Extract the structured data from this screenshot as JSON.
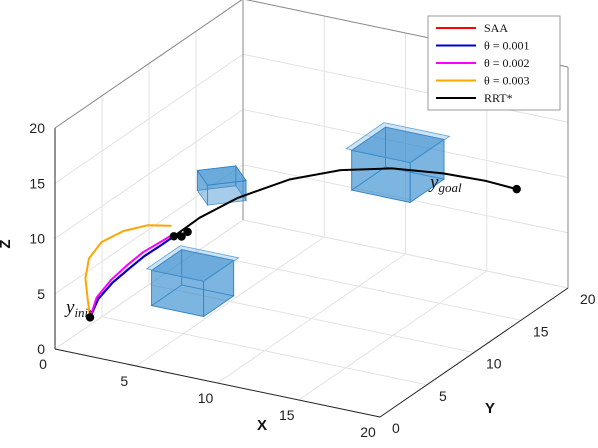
{
  "chart_data": {
    "type": "line",
    "xlabel": "X",
    "ylabel": "Y",
    "zlabel": "Z",
    "xlim": [
      0,
      20
    ],
    "ylim": [
      0,
      20
    ],
    "zlim": [
      0,
      20
    ],
    "xticks": [
      "0",
      "5",
      "10",
      "15",
      "20"
    ],
    "yticks": [
      "0",
      "5",
      "10",
      "15",
      "20"
    ],
    "zticks": [
      "0",
      "5",
      "10",
      "15",
      "20"
    ],
    "grid": true,
    "legend_position": "top-right",
    "series": [
      {
        "name": "SAA",
        "color": "#ff0000",
        "x": [
          1.0,
          1.4,
          2.1,
          2.9,
          3.6,
          4.4,
          5.0
        ],
        "y": [
          2.0,
          2.2,
          2.5,
          2.9,
          3.3,
          3.7,
          4.0
        ],
        "z": [
          2.0,
          3.7,
          5.2,
          6.5,
          7.6,
          8.6,
          9.4
        ]
      },
      {
        "name": "θ = 0.001",
        "color": "#0000cc",
        "x": [
          1.0,
          1.4,
          2.1,
          2.9,
          3.6,
          4.4,
          5.0
        ],
        "y": [
          2.0,
          2.2,
          2.5,
          2.9,
          3.3,
          3.7,
          4.0
        ],
        "z": [
          2.0,
          3.7,
          5.2,
          6.5,
          7.6,
          8.6,
          9.4
        ]
      },
      {
        "name": "θ = 0.002",
        "color": "#ff00ff",
        "x": [
          1.0,
          1.3,
          2.0,
          2.8,
          3.5,
          4.3,
          4.9
        ],
        "y": [
          2.0,
          2.2,
          2.5,
          2.9,
          3.3,
          3.7,
          4.0
        ],
        "z": [
          2.0,
          3.8,
          5.4,
          6.8,
          7.9,
          8.8,
          9.5
        ]
      },
      {
        "name": "θ = 0.003",
        "color": "#ffa500",
        "x": [
          1.0,
          0.8,
          0.6,
          0.7,
          1.3,
          2.4,
          3.6,
          4.8
        ],
        "y": [
          2.0,
          2.1,
          2.2,
          2.4,
          2.7,
          3.1,
          3.6,
          4.0
        ],
        "z": [
          2.0,
          3.5,
          5.3,
          7.0,
          8.5,
          9.6,
          10.2,
          10.3
        ]
      },
      {
        "name": "RRT*",
        "color": "#000000",
        "x": [
          1.0,
          1.4,
          2.1,
          2.9,
          3.6,
          4.4,
          5.0,
          6.0,
          7.5,
          9.5,
          11.5,
          13.5,
          15.5,
          17.0,
          18.0
        ],
        "y": [
          2.0,
          2.2,
          2.5,
          2.9,
          3.3,
          3.7,
          4.0,
          5.0,
          6.5,
          8.5,
          10.5,
          12.5,
          14.5,
          16.5,
          18.0
        ],
        "z": [
          2.0,
          3.7,
          5.2,
          6.5,
          7.6,
          8.6,
          9.4,
          10.8,
          12.2,
          13.3,
          13.6,
          13.2,
          12.2,
          10.8,
          9.5
        ]
      }
    ],
    "nodes": [
      {
        "x": 1.0,
        "y": 2.0,
        "z": 2.0
      },
      {
        "x": 5.0,
        "y": 4.0,
        "z": 9.4
      },
      {
        "x": 5.3,
        "y": 4.3,
        "z": 9.3
      },
      {
        "x": 5.5,
        "y": 4.6,
        "z": 9.6
      },
      {
        "x": 18.0,
        "y": 18.0,
        "z": 9.5
      }
    ],
    "obstacles": [
      {
        "center": [
          5.0,
          6.0,
          4.0
        ],
        "half_size": 1.6
      },
      {
        "center": [
          6.5,
          6.5,
          13.0
        ],
        "half_size": 1.5,
        "rotated": true
      },
      {
        "center": [
          13.0,
          14.0,
          12.5
        ],
        "half_size": 1.8
      }
    ],
    "obstacle_color": "#3a8fd0",
    "annotations": [
      {
        "id": "init",
        "base": "y",
        "sub": "init",
        "point": [
          1.0,
          2.0,
          2.0
        ]
      },
      {
        "id": "goal",
        "base": "y",
        "sub": "goal",
        "point": [
          18.0,
          18.0,
          9.5
        ]
      }
    ]
  }
}
